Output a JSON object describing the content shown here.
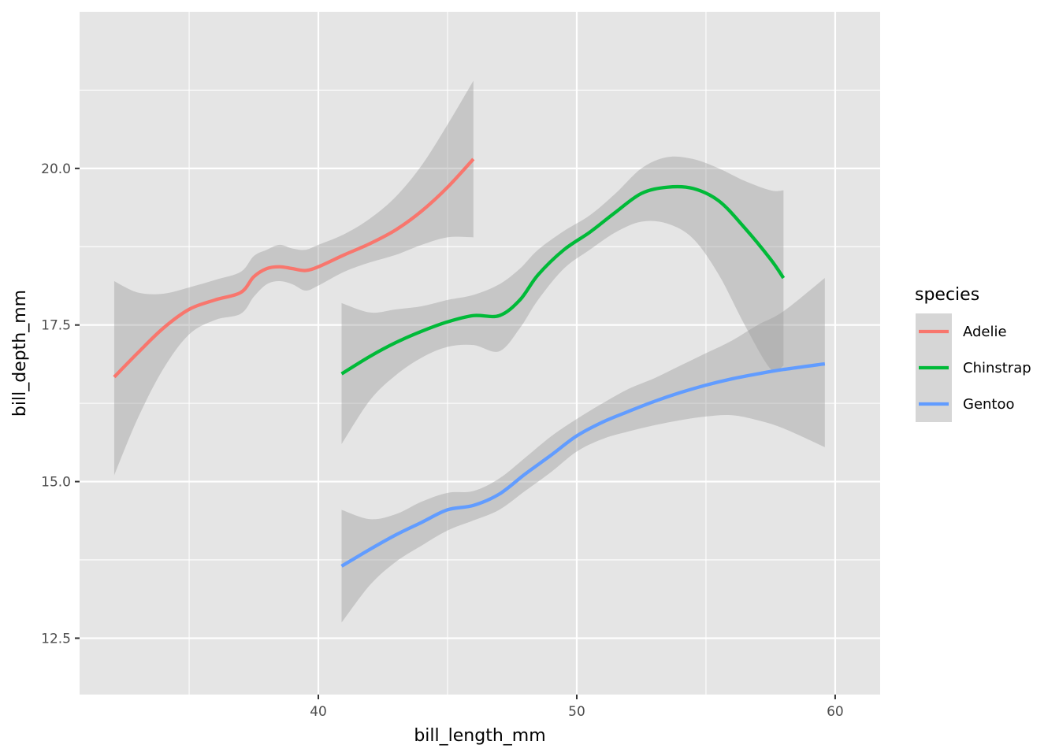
{
  "chart_data": {
    "type": "line",
    "title": "",
    "xlabel": "bill_length_mm",
    "ylabel": "bill_depth_mm",
    "xlim": [
      30.76,
      61.74
    ],
    "ylim": [
      11.6,
      22.5
    ],
    "x_ticks": [
      40,
      50,
      60
    ],
    "x_tick_labels": [
      "40",
      "50",
      "60"
    ],
    "y_ticks": [
      12.5,
      15.0,
      17.5,
      20.0
    ],
    "y_tick_labels": [
      "12.5",
      "15.0",
      "17.5",
      "20.0"
    ],
    "grid": true,
    "legend": {
      "title": "species",
      "position": "right"
    },
    "series": [
      {
        "name": "Adelie",
        "color": "#F8766D",
        "x": [
          32.1,
          33.0,
          34.0,
          35.0,
          36.0,
          37.0,
          37.5,
          38.0,
          38.5,
          39.0,
          39.5,
          40.0,
          41.0,
          42.0,
          43.0,
          44.0,
          45.0,
          46.0
        ],
        "y": [
          16.67,
          17.05,
          17.45,
          17.75,
          17.9,
          18.02,
          18.27,
          18.4,
          18.43,
          18.4,
          18.37,
          18.43,
          18.62,
          18.8,
          19.02,
          19.32,
          19.7,
          20.15
        ],
        "lower": [
          15.1,
          16.0,
          16.8,
          17.35,
          17.58,
          17.68,
          17.95,
          18.15,
          18.2,
          18.15,
          18.05,
          18.13,
          18.35,
          18.5,
          18.62,
          18.78,
          18.9,
          18.9
        ],
        "upper": [
          18.2,
          18.02,
          18.0,
          18.1,
          18.22,
          18.35,
          18.6,
          18.7,
          18.78,
          18.72,
          18.7,
          18.78,
          18.95,
          19.2,
          19.55,
          20.05,
          20.7,
          21.4
        ]
      },
      {
        "name": "Chinstrap",
        "color": "#00BA38",
        "x": [
          40.9,
          42.0,
          43.0,
          44.0,
          45.0,
          46.0,
          47.0,
          47.8,
          48.5,
          49.5,
          50.5,
          51.5,
          52.5,
          53.5,
          54.5,
          55.5,
          56.5,
          57.5,
          58.0
        ],
        "y": [
          16.72,
          17.0,
          17.22,
          17.4,
          17.55,
          17.65,
          17.65,
          17.9,
          18.3,
          18.7,
          18.98,
          19.3,
          19.6,
          19.7,
          19.68,
          19.48,
          19.05,
          18.55,
          18.25
        ],
        "lower": [
          15.6,
          16.3,
          16.7,
          16.98,
          17.15,
          17.18,
          17.08,
          17.45,
          17.9,
          18.4,
          18.7,
          18.98,
          19.15,
          19.12,
          18.88,
          18.3,
          17.5,
          16.8,
          16.85
        ],
        "upper": [
          17.85,
          17.7,
          17.75,
          17.8,
          17.9,
          17.98,
          18.15,
          18.4,
          18.7,
          19.0,
          19.25,
          19.6,
          20.0,
          20.18,
          20.15,
          20.0,
          19.8,
          19.65,
          19.65
        ]
      },
      {
        "name": "Gentoo",
        "color": "#619CFF",
        "x": [
          40.9,
          42.0,
          43.0,
          44.0,
          45.0,
          46.0,
          47.0,
          48.0,
          49.0,
          50.0,
          51.0,
          52.0,
          53.0,
          54.0,
          55.0,
          56.0,
          57.0,
          58.0,
          59.6
        ],
        "y": [
          13.65,
          13.92,
          14.15,
          14.35,
          14.55,
          14.62,
          14.8,
          15.12,
          15.42,
          15.73,
          15.95,
          16.12,
          16.28,
          16.42,
          16.54,
          16.64,
          16.72,
          16.79,
          16.88
        ],
        "lower": [
          12.75,
          13.35,
          13.72,
          13.98,
          14.22,
          14.38,
          14.55,
          14.85,
          15.15,
          15.48,
          15.68,
          15.8,
          15.9,
          15.98,
          16.04,
          16.06,
          15.98,
          15.85,
          15.55
        ],
        "upper": [
          14.55,
          14.4,
          14.48,
          14.68,
          14.82,
          14.85,
          15.05,
          15.38,
          15.72,
          16.0,
          16.25,
          16.48,
          16.65,
          16.85,
          17.05,
          17.25,
          17.5,
          17.72,
          18.25
        ]
      }
    ]
  },
  "colors": {
    "panel_background": "#E5E5E5",
    "grid_major": "#FFFFFF",
    "ribbon": "#999999"
  }
}
